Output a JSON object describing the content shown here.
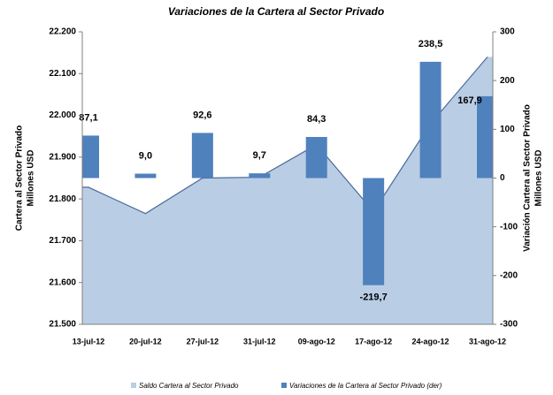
{
  "chart_data": {
    "type": "bar_area_combo",
    "title": "Variaciones de la Cartera al Sector Privado",
    "y_label": [
      "Cartera al Sector Privado",
      "Millones USD"
    ],
    "y2_label": [
      "Variación Cartera al Sector Privado",
      "Millones USD"
    ],
    "categories": [
      "13-jul-12",
      "20-jul-12",
      "27-jul-12",
      "31-jul-12",
      "09-ago-12",
      "17-ago-12",
      "24-ago-12",
      "31-ago-12"
    ],
    "series": [
      {
        "name": "Saldo Cartera al Sector Privado",
        "type": "area",
        "color": "#b9cde5",
        "line_color": "#4a6b9a",
        "values": [
          21828,
          21765,
          21850,
          21852,
          21930,
          21770,
          21980,
          22140
        ]
      },
      {
        "name": "Variaciones de la Cartera al Sector Privado (der)",
        "type": "bar",
        "axis": "y2",
        "color": "#4f81bd",
        "values": [
          87.1,
          9.0,
          92.6,
          9.7,
          84.3,
          -219.7,
          238.5,
          167.9
        ],
        "value_labels": [
          "87,1",
          "9,0",
          "92,6",
          "9,7",
          "84,3",
          "-219,7",
          "238,5",
          "167,9"
        ]
      }
    ],
    "ylim": [
      21500,
      22200
    ],
    "yticks": [
      {
        "value": 21500,
        "label": "21.500"
      },
      {
        "value": 21600,
        "label": "21.600"
      },
      {
        "value": 21700,
        "label": "21.700"
      },
      {
        "value": 21800,
        "label": "21.800"
      },
      {
        "value": 21900,
        "label": "21.900"
      },
      {
        "value": 22000,
        "label": "22.000"
      },
      {
        "value": 22100,
        "label": "22.100"
      },
      {
        "value": 22200,
        "label": "22.200"
      }
    ],
    "y2lim": [
      -300,
      300
    ],
    "y2ticks": [
      -300,
      -200,
      -100,
      0,
      100,
      200,
      300
    ],
    "legend": "bottom"
  }
}
